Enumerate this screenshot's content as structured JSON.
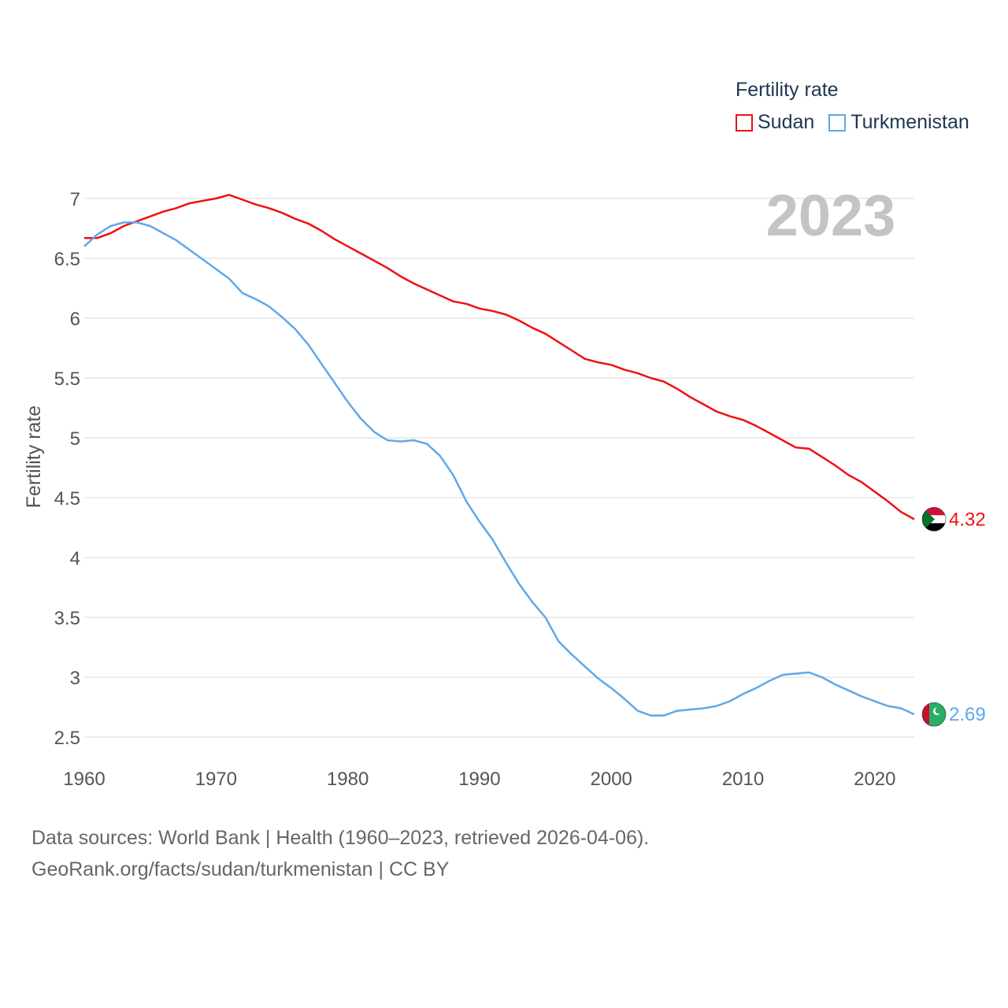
{
  "legend": {
    "title": "Fertility rate",
    "items": [
      {
        "label": "Sudan",
        "color": "#ee1111"
      },
      {
        "label": "Turkmenistan",
        "color": "#5fa8e8"
      }
    ]
  },
  "year_watermark": "2023",
  "footer": {
    "line1": "Data sources: World Bank | Health (1960–2023, retrieved 2026-04-06).",
    "line2": "GeoRank.org/facts/sudan/turkmenistan | CC BY"
  },
  "chart_data": {
    "type": "line",
    "title": "",
    "xlabel": "",
    "ylabel": "Fertility rate",
    "xlim": [
      1960,
      2023
    ],
    "ylim": [
      2.5,
      7
    ],
    "x_ticks": [
      1960,
      1970,
      1980,
      1990,
      2000,
      2010,
      2020
    ],
    "y_ticks": [
      2.5,
      3,
      3.5,
      4,
      4.5,
      5,
      5.5,
      6,
      6.5,
      7
    ],
    "y_tick_labels": [
      "2.5",
      "3",
      "3.5",
      "4",
      "4.5",
      "5",
      "5.5",
      "6",
      "6.5",
      "7"
    ],
    "grid": true,
    "x": [
      1960,
      1961,
      1962,
      1963,
      1964,
      1965,
      1966,
      1967,
      1968,
      1969,
      1970,
      1971,
      1972,
      1973,
      1974,
      1975,
      1976,
      1977,
      1978,
      1979,
      1980,
      1981,
      1982,
      1983,
      1984,
      1985,
      1986,
      1987,
      1988,
      1989,
      1990,
      1991,
      1992,
      1993,
      1994,
      1995,
      1996,
      1997,
      1998,
      1999,
      2000,
      2001,
      2002,
      2003,
      2004,
      2005,
      2006,
      2007,
      2008,
      2009,
      2010,
      2011,
      2012,
      2013,
      2014,
      2015,
      2016,
      2017,
      2018,
      2019,
      2020,
      2021,
      2022,
      2023
    ],
    "series": [
      {
        "name": "Sudan",
        "color": "#ee1111",
        "end_label": "4.32",
        "values": [
          6.67,
          6.67,
          6.71,
          6.77,
          6.81,
          6.85,
          6.89,
          6.92,
          6.96,
          6.98,
          7.0,
          7.03,
          6.99,
          6.95,
          6.92,
          6.88,
          6.83,
          6.79,
          6.73,
          6.66,
          6.6,
          6.54,
          6.48,
          6.42,
          6.35,
          6.29,
          6.24,
          6.19,
          6.14,
          6.12,
          6.08,
          6.06,
          6.03,
          5.98,
          5.92,
          5.87,
          5.8,
          5.73,
          5.66,
          5.63,
          5.61,
          5.57,
          5.54,
          5.5,
          5.47,
          5.41,
          5.34,
          5.28,
          5.22,
          5.18,
          5.15,
          5.1,
          5.04,
          4.98,
          4.92,
          4.91,
          4.84,
          4.77,
          4.69,
          4.63,
          4.55,
          4.47,
          4.38,
          4.32
        ]
      },
      {
        "name": "Turkmenistan",
        "color": "#5fa8e8",
        "end_label": "2.69",
        "values": [
          6.6,
          6.7,
          6.77,
          6.8,
          6.8,
          6.77,
          6.71,
          6.65,
          6.57,
          6.49,
          6.41,
          6.33,
          6.21,
          6.16,
          6.1,
          6.01,
          5.91,
          5.78,
          5.62,
          5.46,
          5.3,
          5.16,
          5.05,
          4.98,
          4.97,
          4.98,
          4.95,
          4.85,
          4.69,
          4.47,
          4.3,
          4.15,
          3.96,
          3.78,
          3.63,
          3.5,
          3.3,
          3.19,
          3.09,
          2.99,
          2.91,
          2.82,
          2.72,
          2.68,
          2.68,
          2.72,
          2.73,
          2.74,
          2.76,
          2.8,
          2.86,
          2.91,
          2.97,
          3.02,
          3.03,
          3.04,
          3.0,
          2.94,
          2.89,
          2.84,
          2.8,
          2.76,
          2.74,
          2.69
        ]
      }
    ]
  }
}
